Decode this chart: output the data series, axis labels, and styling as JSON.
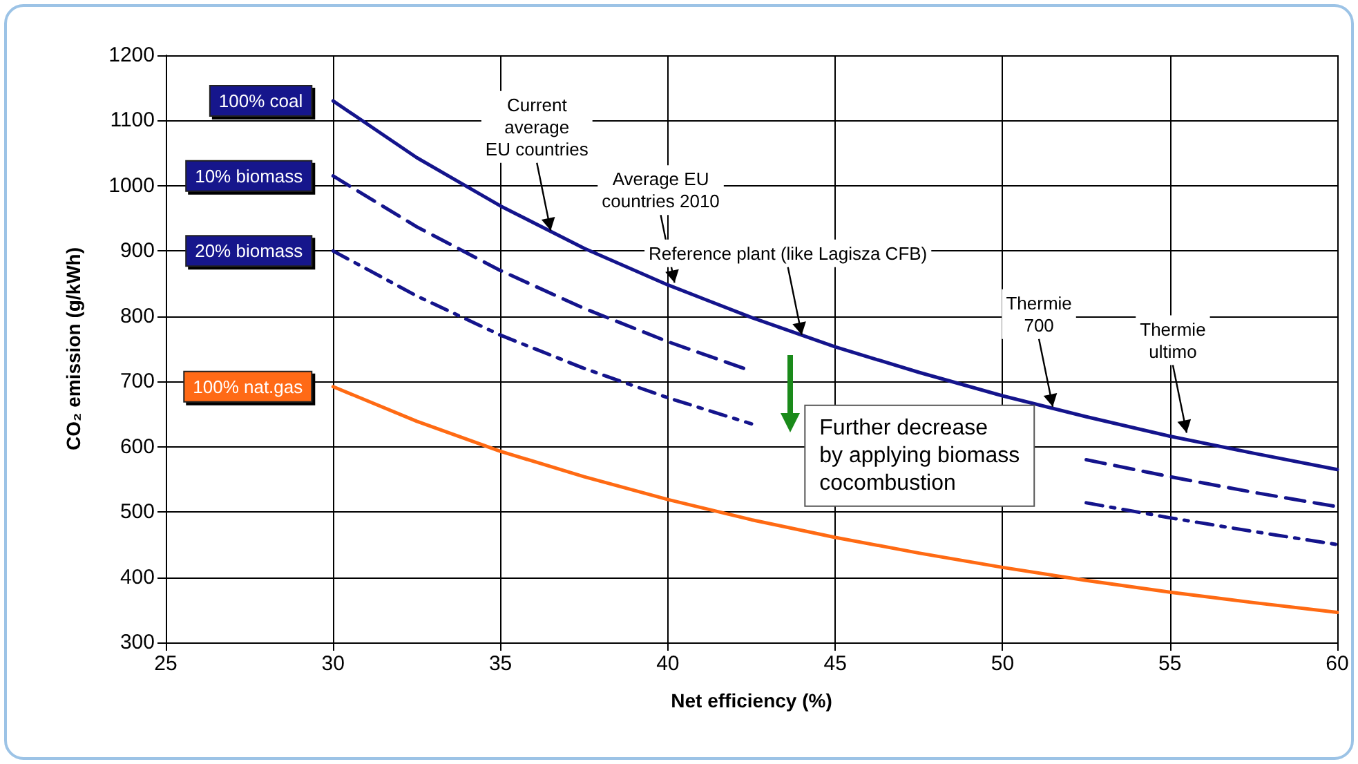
{
  "chart_data": {
    "type": "line",
    "xlabel": "Net efficiency (%)",
    "ylabel": "CO₂ emission (g/kWh)",
    "x": [
      30,
      32.5,
      35,
      37.5,
      40,
      42.5,
      45,
      47.5,
      50,
      52.5,
      55,
      57.5,
      60
    ],
    "series": [
      {
        "name": "100% coal",
        "color": "#14148c",
        "line_style": "solid",
        "values": [
          1130,
          1043,
          969,
          904,
          848,
          798,
          753,
          714,
          678,
          646,
          616,
          590,
          565
        ]
      },
      {
        "name": "10% biomass",
        "color": "#14148c",
        "line_style": "dashed",
        "values": [
          1015,
          937,
          870,
          812,
          761,
          716,
          null,
          null,
          null,
          580,
          554,
          530,
          508
        ]
      },
      {
        "name": "20% biomass",
        "color": "#14148c",
        "line_style": "dotted",
        "values": [
          900,
          831,
          771,
          720,
          675,
          635,
          null,
          null,
          null,
          514,
          491,
          470,
          450
        ]
      },
      {
        "name": "100% nat.gas",
        "color": "#ff6a13",
        "line_style": "solid",
        "values": [
          692,
          639,
          593,
          554,
          519,
          488,
          461,
          437,
          415,
          395,
          377,
          361,
          346
        ]
      }
    ],
    "xlim": [
      25,
      60
    ],
    "xticks": [
      25,
      30,
      35,
      40,
      45,
      50,
      55,
      60
    ],
    "ylim": [
      300,
      1200
    ],
    "yticks": [
      300,
      400,
      500,
      600,
      700,
      800,
      900,
      1000,
      1100,
      1200
    ],
    "grid": true,
    "annotations": [
      {
        "text": "Current\naverage\nEU countries",
        "x": 36.5,
        "y": 925
      },
      {
        "text": "Average EU\ncountries 2010",
        "x": 40.2,
        "y": 845
      },
      {
        "text": "Reference plant (like Lagisza CFB)",
        "x": 44,
        "y": 765
      },
      {
        "text": "Thermie\n700",
        "x": 51.5,
        "y": 655
      },
      {
        "text": "Thermie\nultimo",
        "x": 55.5,
        "y": 615
      },
      "Further decrease\nby applying biomass\ncocombustion"
    ]
  }
}
